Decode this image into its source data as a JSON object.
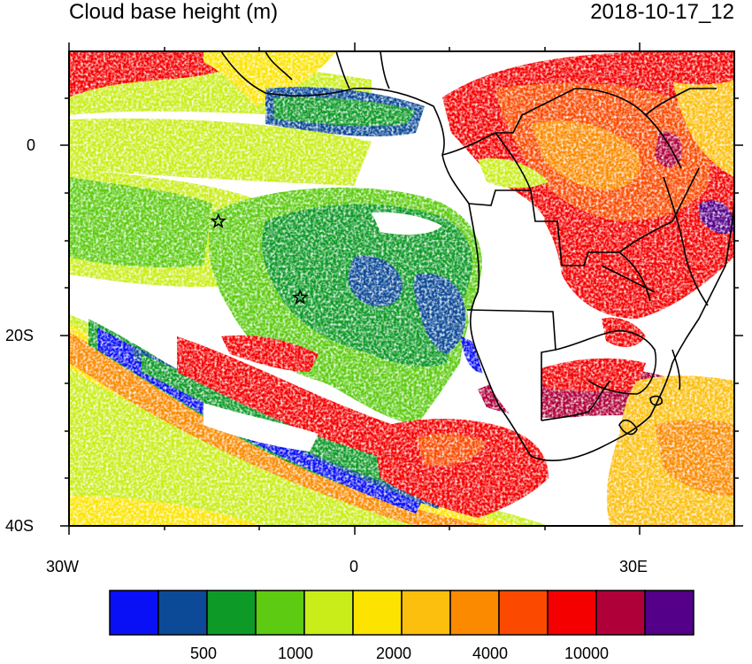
{
  "title": {
    "left": "Cloud base height (m)",
    "right": "2018-10-17_12"
  },
  "axes": {
    "y_ticks": [
      "0",
      "20S",
      "40S"
    ],
    "x_ticks": [
      "30W",
      "0",
      "30E"
    ]
  },
  "colorbar": {
    "colors": [
      "#0a10f5",
      "#0c4a97",
      "#0e9a27",
      "#5dcb11",
      "#c9ed18",
      "#fce400",
      "#fcbf0d",
      "#fb8a00",
      "#fb4a00",
      "#f50000",
      "#b0003a",
      "#550089"
    ],
    "labels": [
      "500",
      "1000",
      "2000",
      "4000",
      "10000"
    ]
  },
  "markers": [
    {
      "name": "star-marker-1",
      "lon": -14.3,
      "lat": -8
    },
    {
      "name": "star-marker-2",
      "lon": -5.7,
      "lat": -16
    }
  ]
}
